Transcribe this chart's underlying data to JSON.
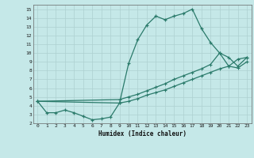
{
  "xlabel": "Humidex (Indice chaleur)",
  "bg_color": "#c5e8e8",
  "grid_color": "#aed0d0",
  "line_color": "#2a7a6a",
  "xlim": [
    -0.5,
    23.5
  ],
  "ylim": [
    2,
    15.5
  ],
  "xticks": [
    0,
    1,
    2,
    3,
    4,
    5,
    6,
    7,
    8,
    9,
    10,
    11,
    12,
    13,
    14,
    15,
    16,
    17,
    18,
    19,
    20,
    21,
    22,
    23
  ],
  "yticks": [
    2,
    3,
    4,
    5,
    6,
    7,
    8,
    9,
    10,
    11,
    12,
    13,
    14,
    15
  ],
  "line1_x": [
    0,
    1,
    2,
    3,
    4,
    5,
    6,
    7,
    8,
    9,
    10,
    11,
    12,
    13,
    14,
    15,
    16,
    17,
    18,
    19,
    20,
    21,
    22,
    23
  ],
  "line1_y": [
    4.5,
    3.2,
    3.2,
    3.5,
    3.2,
    2.8,
    2.4,
    2.5,
    2.7,
    4.3,
    8.8,
    11.5,
    13.2,
    14.2,
    13.8,
    14.2,
    14.5,
    15.0,
    12.8,
    11.2,
    10.0,
    8.5,
    9.3,
    9.5
  ],
  "line2_x": [
    0,
    9,
    10,
    11,
    12,
    13,
    14,
    15,
    16,
    17,
    18,
    19,
    20,
    21,
    22,
    23
  ],
  "line2_y": [
    4.5,
    4.7,
    5.0,
    5.3,
    5.7,
    6.1,
    6.5,
    7.0,
    7.4,
    7.8,
    8.2,
    8.7,
    10.0,
    9.5,
    8.5,
    9.5
  ],
  "line3_x": [
    0,
    9,
    10,
    11,
    12,
    13,
    14,
    15,
    16,
    17,
    18,
    19,
    20,
    21,
    22,
    23
  ],
  "line3_y": [
    4.5,
    4.3,
    4.5,
    4.8,
    5.2,
    5.5,
    5.8,
    6.2,
    6.6,
    7.0,
    7.4,
    7.8,
    8.2,
    8.5,
    8.3,
    9.0
  ]
}
